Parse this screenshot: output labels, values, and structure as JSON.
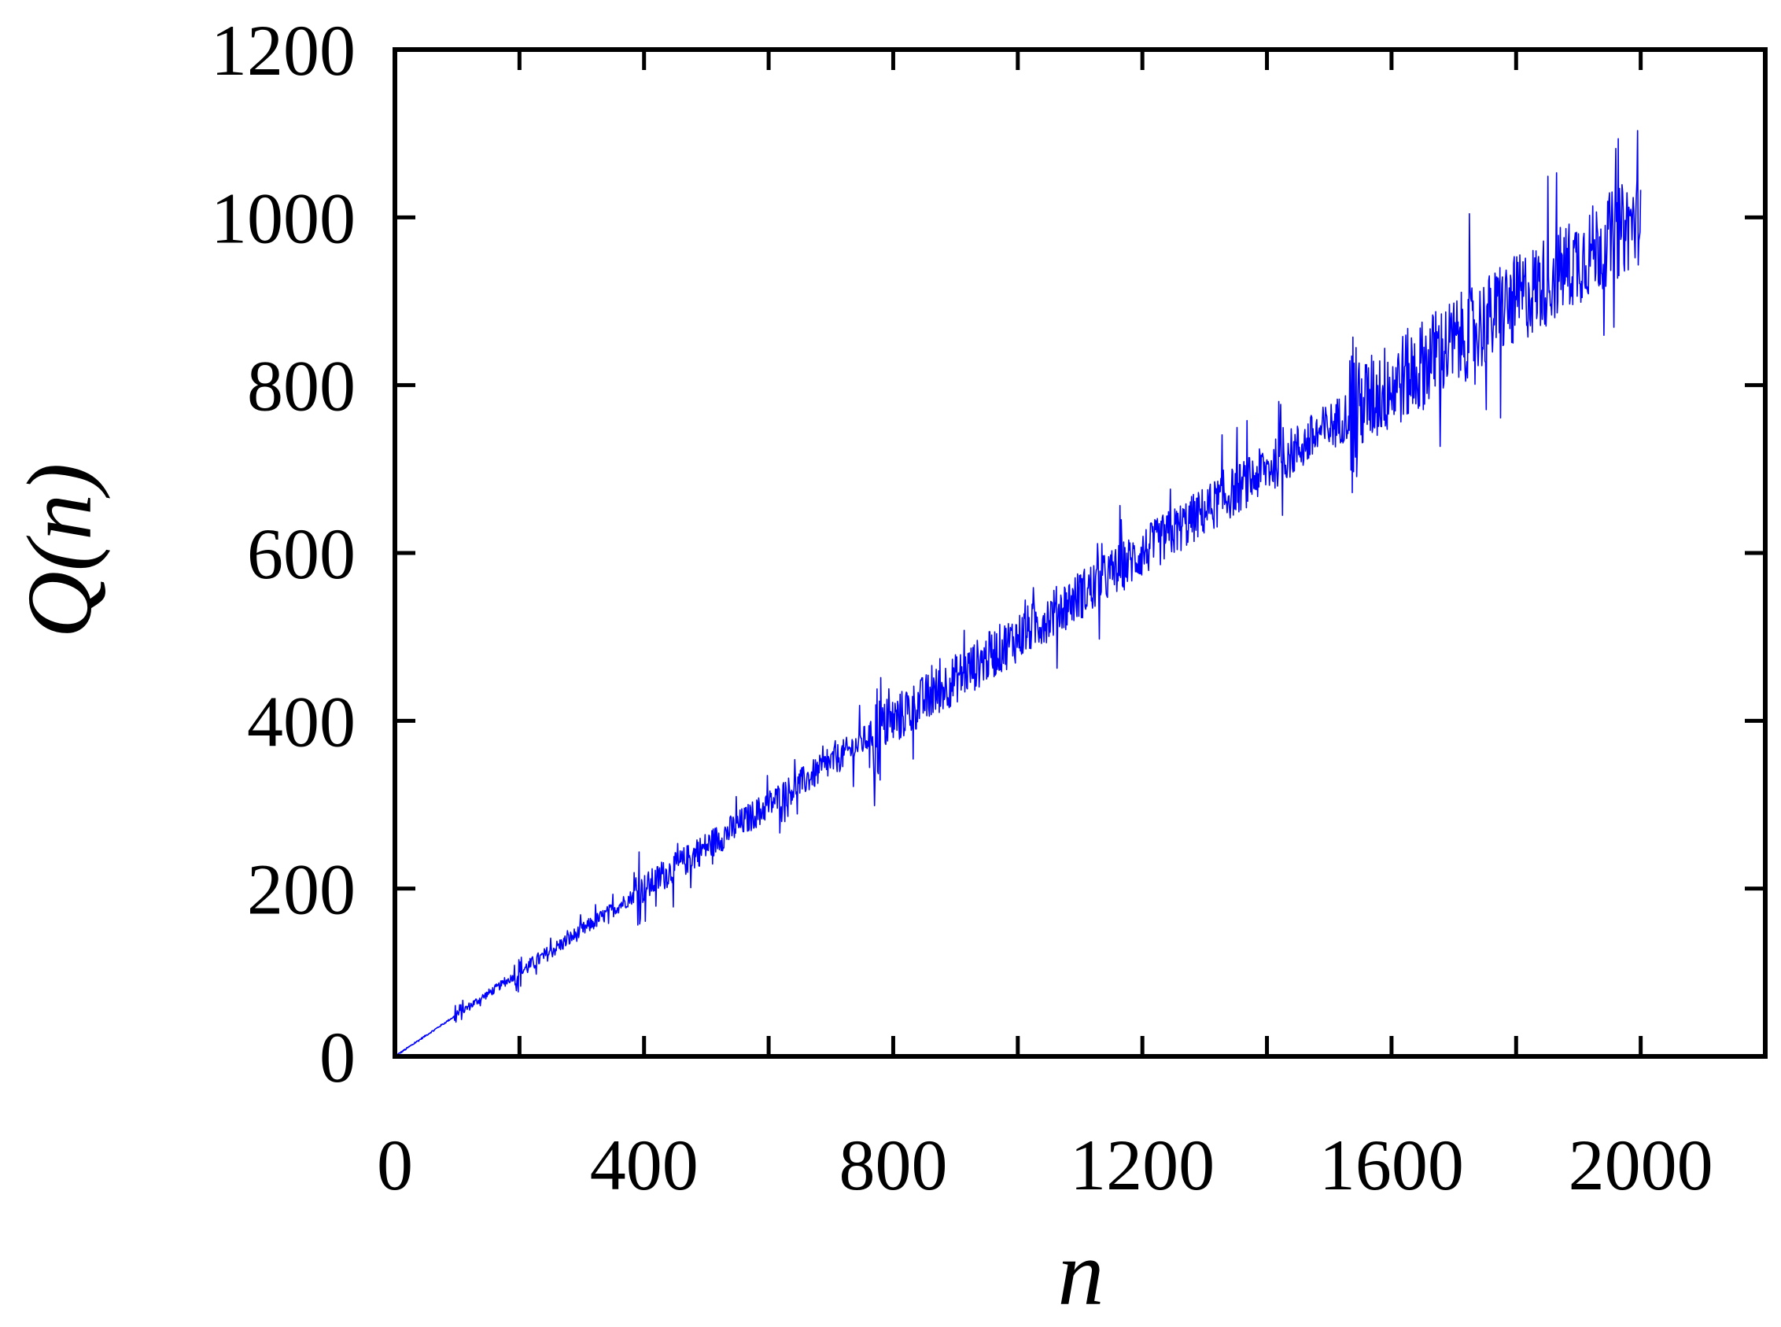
{
  "chart_data": {
    "type": "line",
    "title": "",
    "xlabel": "n",
    "ylabel": "Q(n)",
    "xlim": [
      0,
      2200
    ],
    "ylim": [
      0,
      1200
    ],
    "x_ticks": [
      0,
      400,
      800,
      1200,
      1600,
      2000
    ],
    "y_ticks": [
      0,
      200,
      400,
      600,
      800,
      1000,
      1200
    ],
    "x_tick_labels": [
      "0",
      "400",
      "800",
      "1200",
      "1600",
      "2000"
    ],
    "y_tick_labels": [
      "0",
      "200",
      "400",
      "600",
      "800",
      "1000",
      "1200"
    ],
    "grid": false,
    "legend": "none",
    "series": [
      {
        "color": "#0000ff",
        "description_points": {
          "x": [
            0,
            96,
            192,
            384,
            768,
            1536,
            2000
          ],
          "y_center": [
            0,
            48,
            96,
            192,
            384,
            768,
            1000
          ],
          "y_max": [
            0,
            60,
            125,
            255,
            510,
            960,
            1105
          ],
          "y_min": [
            0,
            40,
            75,
            135,
            280,
            615,
            895
          ]
        },
        "x": [
          0,
          20,
          40,
          60,
          80,
          96,
          100,
          120,
          140,
          160,
          180,
          192,
          195,
          200,
          220,
          240,
          260,
          280,
          300,
          320,
          340,
          360,
          380,
          384,
          386,
          390,
          400,
          420,
          440,
          460,
          480,
          500,
          520,
          540,
          560,
          580,
          600,
          620,
          640,
          660,
          680,
          700,
          720,
          740,
          760,
          768,
          770,
          775,
          780,
          790,
          800,
          820,
          840,
          860,
          880,
          900,
          920,
          940,
          960,
          980,
          1000,
          1020,
          1040,
          1060,
          1080,
          1100,
          1120,
          1140,
          1160,
          1180,
          1200,
          1220,
          1240,
          1260,
          1280,
          1300,
          1320,
          1340,
          1360,
          1380,
          1400,
          1420,
          1440,
          1460,
          1480,
          1500,
          1520,
          1536,
          1538,
          1545,
          1560,
          1580,
          1600,
          1620,
          1640,
          1660,
          1680,
          1700,
          1720,
          1740,
          1760,
          1780,
          1800,
          1820,
          1840,
          1860,
          1880,
          1900,
          1920,
          1940,
          1960,
          1980,
          2000
        ],
        "y": [
          0,
          10,
          20,
          30,
          40,
          48,
          50,
          60,
          70,
          80,
          90,
          96,
          118,
          100,
          110,
          120,
          130,
          140,
          150,
          160,
          170,
          180,
          190,
          192,
          240,
          205,
          200,
          210,
          222,
          230,
          238,
          250,
          255,
          262,
          270,
          280,
          290,
          300,
          310,
          318,
          325,
          335,
          345,
          355,
          365,
          384,
          500,
          300,
          420,
          400,
          410,
          420,
          430,
          440,
          450,
          460,
          470,
          480,
          490,
          500,
          510,
          520,
          530,
          540,
          550,
          560,
          570,
          580,
          590,
          600,
          610,
          620,
          630,
          640,
          650,
          655,
          665,
          675,
          685,
          695,
          705,
          715,
          725,
          735,
          745,
          755,
          765,
          768,
          900,
          650,
          780,
          800,
          790,
          820,
          810,
          840,
          830,
          860,
          850,
          880,
          870,
          890,
          900,
          910,
          900,
          930,
          920,
          950,
          940,
          960,
          970,
          980,
          1000
        ]
      }
    ]
  }
}
